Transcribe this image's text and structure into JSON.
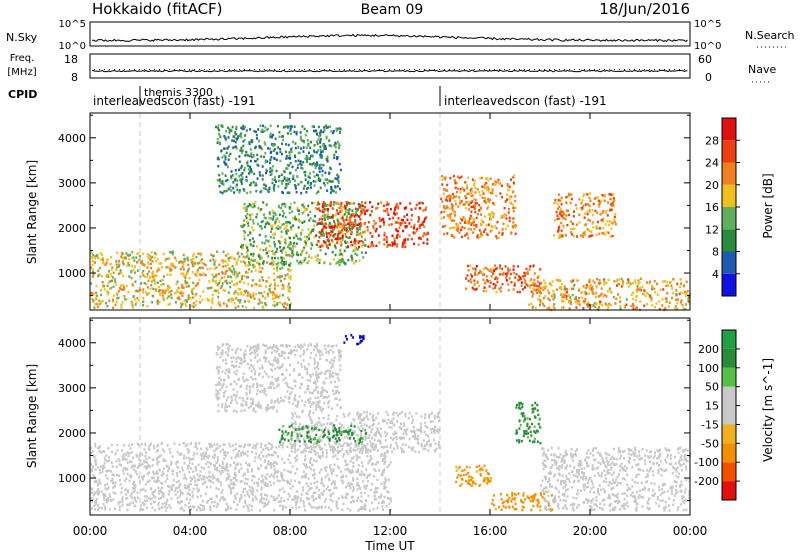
{
  "header": {
    "station": "Hokkaido (fitACF)",
    "beam": "Beam 09",
    "date": "18/Jun/2016"
  },
  "top_panels": {
    "nsky": {
      "label": "N.Sky",
      "tick_top": "10^5",
      "tick_bottom": "10^0",
      "right_label": "N.Search",
      "right_tick_top": "10^5",
      "right_tick_bottom": "10^0"
    },
    "freq": {
      "label_line1": "Freq.",
      "label_line2": "[MHz]",
      "tick_top": "18",
      "tick_bottom": "8",
      "right_label": "Nave",
      "right_tick_top": "60",
      "right_tick_bottom": "0"
    },
    "cpid": {
      "label": "CPID",
      "entries": [
        {
          "text": "themis 3300",
          "start": "02:00"
        },
        {
          "text": "interleavedscon (fast) -191",
          "start": "00:00"
        },
        {
          "text": "interleavedscon (fast) -191",
          "start": "14:00"
        }
      ]
    }
  },
  "x_axis": {
    "label": "Time UT",
    "ticks": [
      "00:00",
      "04:00",
      "08:00",
      "12:00",
      "16:00",
      "20:00",
      "00:00"
    ],
    "tick_hours": [
      0,
      4,
      8,
      12,
      16,
      20,
      24
    ],
    "range": [
      0,
      24
    ]
  },
  "colors": {
    "power": [
      "#1010e0",
      "#1e5ab0",
      "#2a8a3a",
      "#5eb05e",
      "#f0c020",
      "#f08020",
      "#e84010",
      "#e01010"
    ],
    "velocity": [
      "#e01010",
      "#f05000",
      "#f09000",
      "#f0b020",
      "#c8c8c8",
      "#c8c8c8",
      "#58c048",
      "#2a8a3a",
      "#20a040",
      "#1010c0"
    ],
    "gray_scatter": "#c8c8c8"
  },
  "chart_data": [
    {
      "type": "heatmap",
      "name": "power",
      "xlabel": "",
      "ylabel": "Slant Range [km]",
      "y_ticks": [
        1000,
        2000,
        3000,
        4000
      ],
      "ylim": [
        180,
        4550
      ],
      "colorbar": {
        "label": "Power [dB]",
        "ticks": [
          4,
          8,
          12,
          16,
          20,
          24,
          28
        ],
        "range": [
          0,
          32
        ]
      },
      "regions": [
        {
          "t": [
            0,
            8
          ],
          "r": [
            250,
            1500
          ],
          "v": 18
        },
        {
          "t": [
            6,
            11
          ],
          "r": [
            1200,
            2600
          ],
          "v": 14
        },
        {
          "t": [
            9,
            13.5
          ],
          "r": [
            1600,
            2600
          ],
          "v": 26
        },
        {
          "t": [
            5,
            10
          ],
          "r": [
            2800,
            4300
          ],
          "v": 10
        },
        {
          "t": [
            14,
            17
          ],
          "r": [
            1800,
            3200
          ],
          "v": 22
        },
        {
          "t": [
            15,
            18
          ],
          "r": [
            600,
            1200
          ],
          "v": 24
        },
        {
          "t": [
            18.5,
            21
          ],
          "r": [
            1800,
            2800
          ],
          "v": 22
        },
        {
          "t": [
            17.5,
            24
          ],
          "r": [
            200,
            900
          ],
          "v": 20
        }
      ]
    },
    {
      "type": "heatmap",
      "name": "velocity",
      "xlabel": "Time UT",
      "ylabel": "Slant Range [km]",
      "y_ticks": [
        1000,
        2000,
        3000,
        4000
      ],
      "ylim": [
        180,
        4550
      ],
      "colorbar": {
        "label": "Velocity [m s^-1]",
        "ticks": [
          -200,
          -100,
          -50,
          -15,
          15,
          50,
          100,
          200
        ],
        "range": [
          -250,
          250
        ]
      },
      "regions": [
        {
          "t": [
            0,
            12
          ],
          "r": [
            300,
            1800
          ],
          "v": 0
        },
        {
          "t": [
            8,
            14
          ],
          "r": [
            1600,
            2500
          ],
          "v": 0
        },
        {
          "t": [
            5,
            10
          ],
          "r": [
            2500,
            4000
          ],
          "v": 0
        },
        {
          "t": [
            7.5,
            11
          ],
          "r": [
            1800,
            2200
          ],
          "v": 60
        },
        {
          "t": [
            14.5,
            16
          ],
          "r": [
            800,
            1300
          ],
          "v": -60
        },
        {
          "t": [
            16,
            18.5
          ],
          "r": [
            300,
            700
          ],
          "v": -60
        },
        {
          "t": [
            17,
            18
          ],
          "r": [
            1800,
            2700
          ],
          "v": 60
        },
        {
          "t": [
            10,
            11
          ],
          "r": [
            4000,
            4200
          ],
          "v": 220
        },
        {
          "t": [
            18,
            24
          ],
          "r": [
            300,
            1700
          ],
          "v": 0
        }
      ]
    }
  ]
}
